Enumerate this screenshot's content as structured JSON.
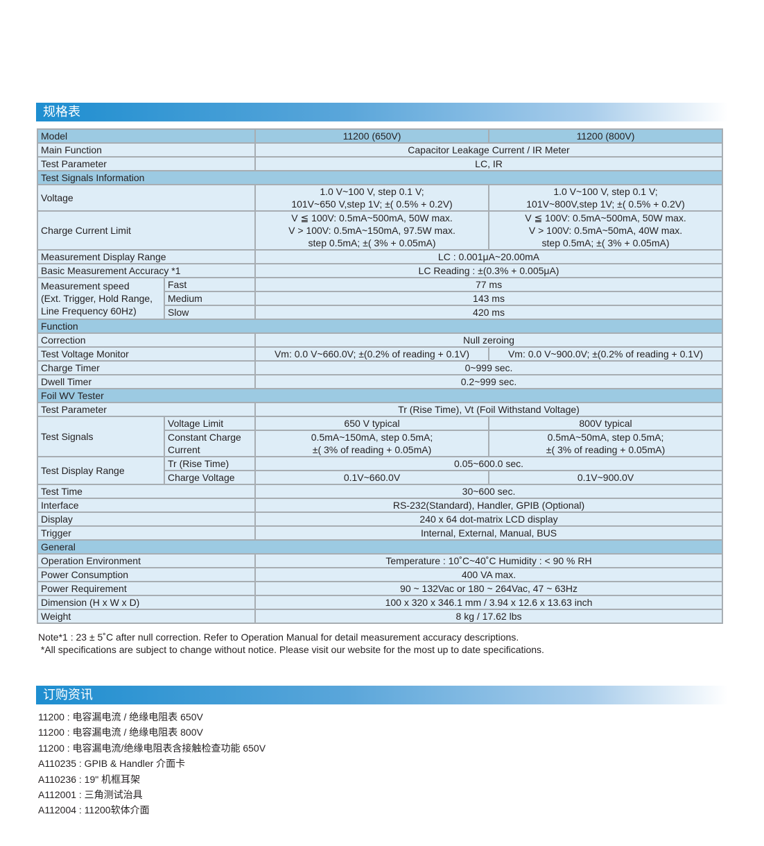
{
  "spec_section_title": "规格表",
  "order_section_title": "订购资讯",
  "spec_table": [
    {
      "type": "hdr",
      "cells": [
        {
          "t": "Model",
          "cs": 2
        },
        {
          "t": "11200 (650V)",
          "c": 1
        },
        {
          "t": "11200 (800V)",
          "c": 1
        }
      ]
    },
    {
      "cells": [
        {
          "t": "Main Function",
          "cs": 2
        },
        {
          "t": "Capacitor Leakage Current / IR Meter",
          "cs": 2,
          "c": 1
        }
      ]
    },
    {
      "cells": [
        {
          "t": "Test Parameter",
          "cs": 2
        },
        {
          "t": "LC, IR",
          "cs": 2,
          "c": 1
        }
      ]
    },
    {
      "type": "sec",
      "cells": [
        {
          "t": "Test Signals Information",
          "cs": 4
        }
      ]
    },
    {
      "cells": [
        {
          "t": "Voltage",
          "cs": 2
        },
        {
          "t": "1.0 V~100 V, step 0.1 V;\n101V~650 V,step 1V; ±( 0.5% + 0.2V)",
          "c": 1
        },
        {
          "t": "1.0 V~100 V, step 0.1 V;\n101V~800V,step 1V; ±( 0.5% + 0.2V)",
          "c": 1
        }
      ]
    },
    {
      "cells": [
        {
          "t": "Charge Current Limit",
          "cs": 2
        },
        {
          "t": "V ≦ 100V: 0.5mA~500mA, 50W max.\nV > 100V: 0.5mA~150mA, 97.5W max.\nstep 0.5mA; ±( 3% + 0.05mA)",
          "c": 1
        },
        {
          "t": "V ≦ 100V: 0.5mA~500mA, 50W max.\nV > 100V: 0.5mA~50mA, 40W max.\nstep 0.5mA; ±( 3% + 0.05mA)",
          "c": 1
        }
      ]
    },
    {
      "cells": [
        {
          "t": "Measurement Display Range",
          "cs": 2
        },
        {
          "t": "LC : 0.001μA~20.00mA",
          "cs": 2,
          "c": 1
        }
      ]
    },
    {
      "cells": [
        {
          "t": "Basic Measurement Accuracy *1",
          "cs": 2
        },
        {
          "t": "LC Reading : ±(0.3% + 0.005μA)",
          "cs": 2,
          "c": 1
        }
      ]
    },
    {
      "cells": [
        {
          "t": "Measurement speed\n(Ext. Trigger, Hold Range,\nLine Frequency 60Hz)",
          "rs": 3
        },
        {
          "t": "Fast"
        },
        {
          "t": "77 ms",
          "cs": 2,
          "c": 1
        }
      ]
    },
    {
      "cells": [
        {
          "t": "Medium"
        },
        {
          "t": "143 ms",
          "cs": 2,
          "c": 1
        }
      ]
    },
    {
      "cells": [
        {
          "t": "Slow"
        },
        {
          "t": "420 ms",
          "cs": 2,
          "c": 1
        }
      ]
    },
    {
      "type": "sec",
      "cells": [
        {
          "t": "Function",
          "cs": 4
        }
      ]
    },
    {
      "cells": [
        {
          "t": "Correction",
          "cs": 2
        },
        {
          "t": "Null zeroing",
          "cs": 2,
          "c": 1
        }
      ]
    },
    {
      "cells": [
        {
          "t": "Test Voltage Monitor",
          "cs": 2
        },
        {
          "t": "Vm: 0.0 V~660.0V; ±(0.2% of reading + 0.1V)",
          "c": 1
        },
        {
          "t": "Vm: 0.0 V~900.0V; ±(0.2% of reading + 0.1V)",
          "c": 1
        }
      ]
    },
    {
      "cells": [
        {
          "t": "Charge Timer",
          "cs": 2
        },
        {
          "t": "0~999 sec.",
          "cs": 2,
          "c": 1
        }
      ]
    },
    {
      "cells": [
        {
          "t": "Dwell Timer",
          "cs": 2
        },
        {
          "t": "0.2~999 sec.",
          "cs": 2,
          "c": 1
        }
      ]
    },
    {
      "type": "sec",
      "cells": [
        {
          "t": "Foil WV Tester",
          "cs": 4
        }
      ]
    },
    {
      "cells": [
        {
          "t": "Test Parameter",
          "cs": 2
        },
        {
          "t": "Tr (Rise Time), Vt (Foil Withstand Voltage)",
          "cs": 2,
          "c": 1
        }
      ]
    },
    {
      "cells": [
        {
          "t": "Test Signals",
          "rs": 2
        },
        {
          "t": "Voltage Limit"
        },
        {
          "t": "650 V typical",
          "c": 1
        },
        {
          "t": "800V typical",
          "c": 1
        }
      ]
    },
    {
      "cells": [
        {
          "t": "Constant Charge\nCurrent"
        },
        {
          "t": "0.5mA~150mA, step 0.5mA;\n±( 3% of reading + 0.05mA)",
          "c": 1
        },
        {
          "t": "0.5mA~50mA, step 0.5mA;\n±( 3% of reading + 0.05mA)",
          "c": 1
        }
      ]
    },
    {
      "cells": [
        {
          "t": "Test Display Range",
          "rs": 2
        },
        {
          "t": "Tr (Rise Time)"
        },
        {
          "t": "0.05~600.0 sec.",
          "cs": 2,
          "c": 1
        }
      ]
    },
    {
      "cells": [
        {
          "t": "Charge Voltage"
        },
        {
          "t": "0.1V~660.0V",
          "c": 1
        },
        {
          "t": "0.1V~900.0V",
          "c": 1
        }
      ]
    },
    {
      "cells": [
        {
          "t": "Test Time",
          "cs": 2
        },
        {
          "t": "30~600 sec.",
          "cs": 2,
          "c": 1
        }
      ]
    },
    {
      "cells": [
        {
          "t": "Interface",
          "cs": 2
        },
        {
          "t": "RS-232(Standard), Handler, GPIB (Optional)",
          "cs": 2,
          "c": 1
        }
      ]
    },
    {
      "cells": [
        {
          "t": "Display",
          "cs": 2
        },
        {
          "t": "240 x 64 dot-matrix LCD display",
          "cs": 2,
          "c": 1
        }
      ]
    },
    {
      "cells": [
        {
          "t": "Trigger",
          "cs": 2
        },
        {
          "t": "Internal, External, Manual, BUS",
          "cs": 2,
          "c": 1
        }
      ]
    },
    {
      "type": "sec",
      "cells": [
        {
          "t": "General",
          "cs": 4
        }
      ]
    },
    {
      "cells": [
        {
          "t": "Operation Environment",
          "cs": 2
        },
        {
          "t": "Temperature : 10˚C~40˚C Humidity : < 90 % RH",
          "cs": 2,
          "c": 1
        }
      ]
    },
    {
      "cells": [
        {
          "t": "Power Consumption",
          "cs": 2
        },
        {
          "t": "400 VA max.",
          "cs": 2,
          "c": 1
        }
      ]
    },
    {
      "cells": [
        {
          "t": "Power Requirement",
          "cs": 2
        },
        {
          "t": "90 ~ 132Vac or 180 ~ 264Vac, 47 ~ 63Hz",
          "cs": 2,
          "c": 1
        }
      ]
    },
    {
      "cells": [
        {
          "t": "Dimension (H x W x D)",
          "cs": 2
        },
        {
          "t": "100 x 320 x 346.1 mm / 3.94 x 12.6 x 13.63 inch",
          "cs": 2,
          "c": 1
        }
      ]
    },
    {
      "cells": [
        {
          "t": "Weight",
          "cs": 2
        },
        {
          "t": "8 kg / 17.62 lbs",
          "cs": 2,
          "c": 1
        }
      ]
    }
  ],
  "notes": [
    "Note*1 : 23 ± 5˚C after null correction. Refer to Operation Manual for detail measurement accuracy descriptions.",
    " *All specifications are subject to change without notice. Please visit our website for the most up to date specifications."
  ],
  "order_items": [
    "11200 : 电容漏电流 / 绝缘电阻表 650V",
    "11200 : 电容漏电流 / 绝缘电阻表 800V",
    "11200 : 电容漏电流/绝缘电阻表含接触检查功能 650V",
    "A110235 : GPIB & Handler 介面卡",
    "A110236 : 19\" 机框耳架",
    "A112001 : 三角测试治具",
    "A112004 : 11200软体介面"
  ],
  "colors": {
    "header_bar": "#1e8ed0",
    "section_row": "#9ccae2",
    "row": "#deedf7",
    "border": "#a7adb2"
  }
}
